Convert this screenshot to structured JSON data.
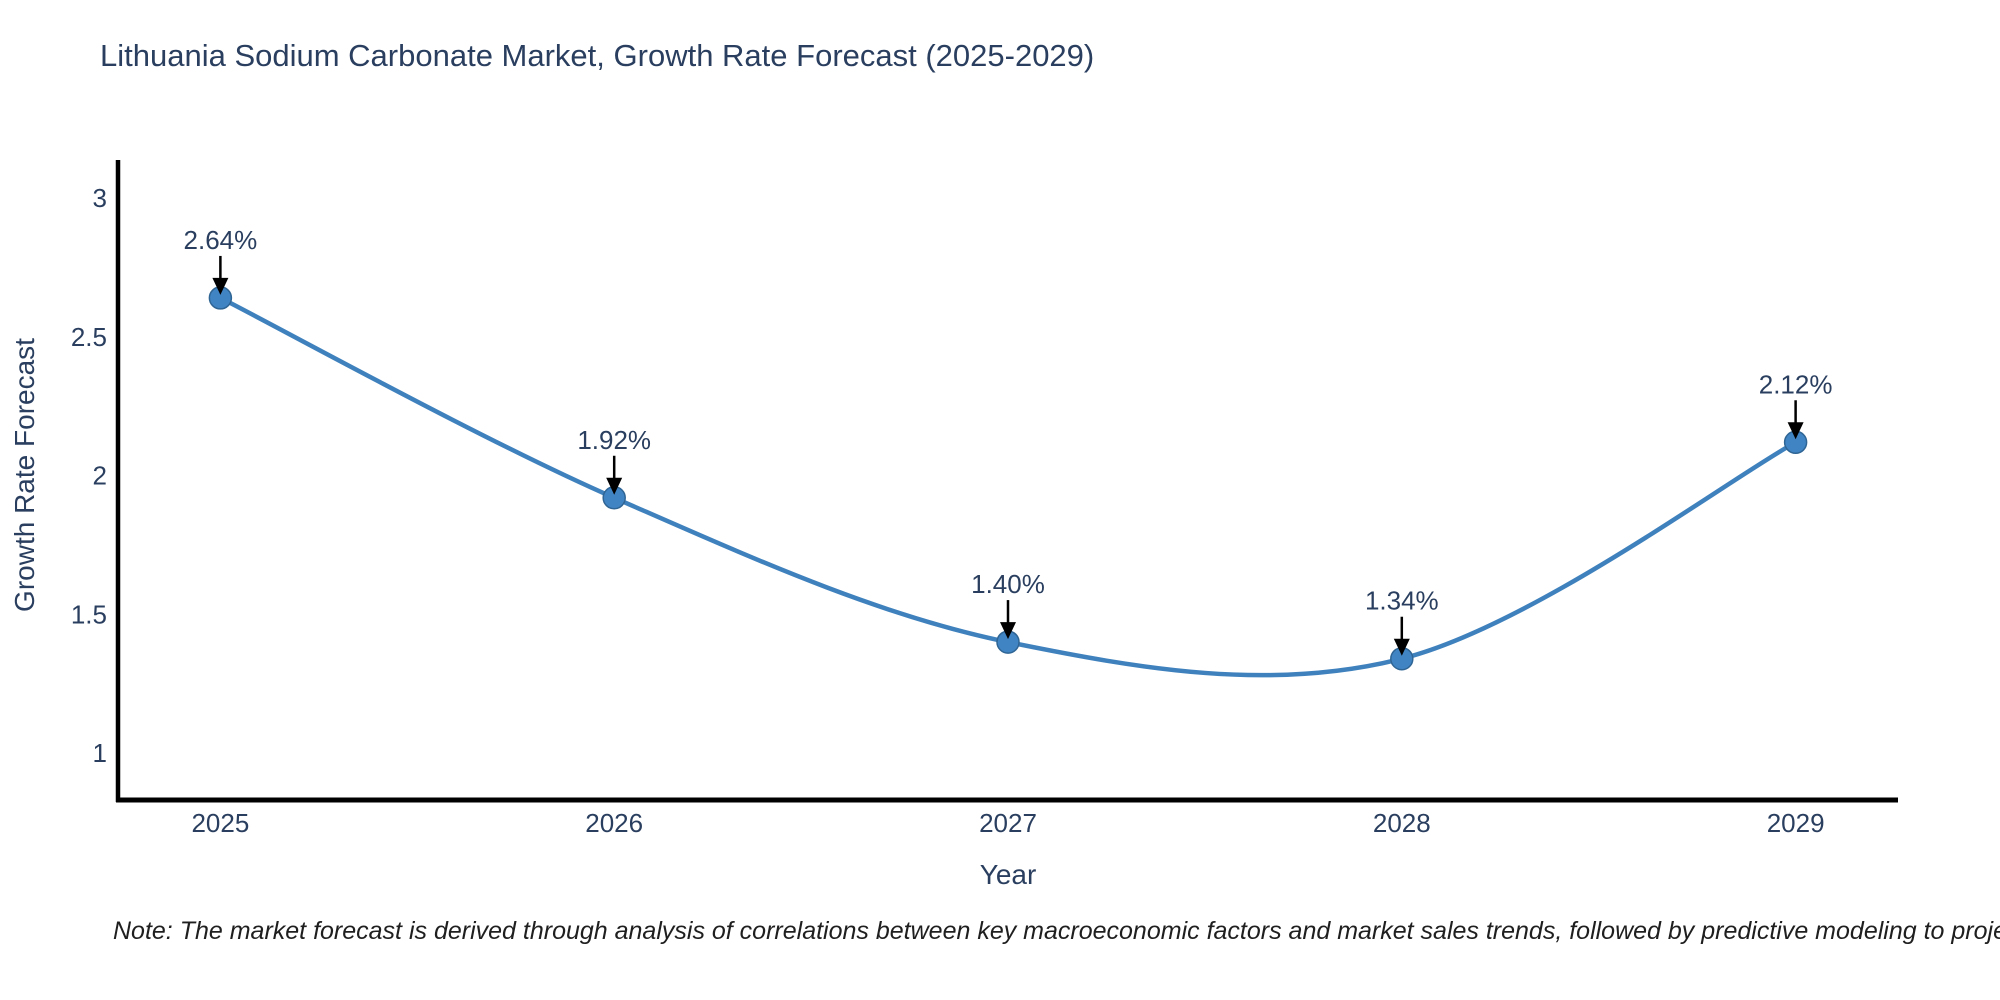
{
  "title": "Lithuania Sodium Carbonate Market, Growth Rate Forecast (2025-2029)",
  "note": "Note: The market forecast is derived through analysis of correlations between key macroeconomic factors and market sales trends, followed by predictive modeling to project future sales",
  "chart_data": {
    "type": "line",
    "title": "Lithuania Sodium Carbonate Market, Growth Rate Forecast (2025-2029)",
    "xlabel": "Year",
    "ylabel": "Growth Rate Forecast",
    "x": [
      2025,
      2026,
      2027,
      2028,
      2029
    ],
    "values": [
      2.64,
      1.92,
      1.4,
      1.34,
      2.12
    ],
    "labels": [
      "2.64%",
      "1.92%",
      "1.40%",
      "1.34%",
      "2.12%"
    ],
    "yticks": [
      1,
      1.5,
      2,
      2.5,
      3
    ],
    "xlim": [
      2024.74,
      2029.26
    ],
    "ylim": [
      0.831,
      3.137
    ],
    "line_shape": "spline",
    "grid": false,
    "legend_position": "none",
    "colors": {
      "line": "#3f81bd",
      "marker": "#4184c4",
      "marker_edge": "#2f6594",
      "axis": "#000000",
      "tick_text": "#2a3f5f",
      "annotation_text": "#2a3f5f",
      "annotation_arrow": "#000000"
    }
  }
}
